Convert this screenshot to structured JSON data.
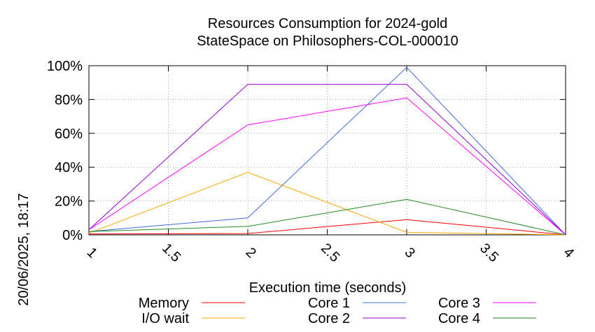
{
  "chart_data": {
    "type": "line",
    "title": [
      "Resources Consumption for 2024-gold",
      "StateSpace on Philosophers-COL-000010"
    ],
    "xlabel": "Execution time (seconds)",
    "ylabel": "",
    "side_label": "20/06/2025, 18:17",
    "xlim": [
      1,
      4
    ],
    "ylim": [
      0,
      100
    ],
    "xticks": [
      1,
      1.5,
      2,
      2.5,
      3,
      3.5,
      4
    ],
    "xtick_labels": [
      "1",
      "1.5",
      "2",
      "2.5",
      "3",
      "3.5",
      "4"
    ],
    "yticks": [
      0,
      20,
      40,
      60,
      80,
      100
    ],
    "ytick_labels": [
      "0%",
      "20%",
      "40%",
      "60%",
      "80%",
      "100%"
    ],
    "grid": true,
    "legend_position": "bottom",
    "x": [
      1,
      2,
      3,
      4
    ],
    "series": [
      {
        "name": "Memory",
        "color": "#ff0000",
        "values": [
          0.5,
          0.8,
          9,
          0
        ]
      },
      {
        "name": "I/O wait",
        "color": "#ffa500",
        "values": [
          1,
          37,
          1.5,
          0
        ]
      },
      {
        "name": "Core 1",
        "color": "#4169e1",
        "values": [
          2,
          10,
          99,
          0
        ]
      },
      {
        "name": "Core 2",
        "color": "#9400d3",
        "values": [
          3,
          89,
          89,
          0
        ]
      },
      {
        "name": "Core 3",
        "color": "#ff00ff",
        "values": [
          3,
          65,
          81,
          0
        ]
      },
      {
        "name": "Core 4",
        "color": "#228b22",
        "values": [
          2,
          5,
          21,
          0
        ]
      }
    ]
  }
}
